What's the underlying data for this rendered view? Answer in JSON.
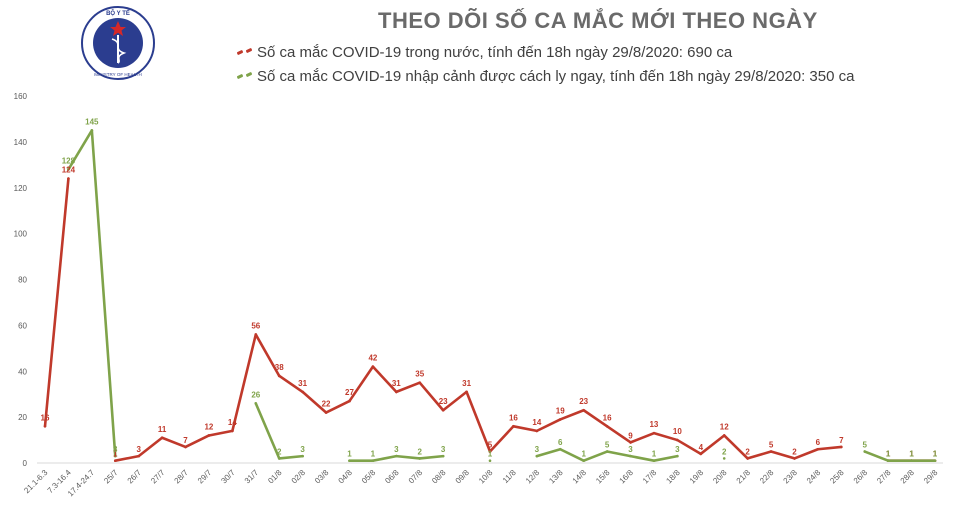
{
  "chart_data": {
    "type": "line",
    "title": "THEO DÕI SỐ CA MẮC MỚI THEO NGÀY",
    "ylim": [
      0,
      160
    ],
    "yticks": [
      0,
      20,
      40,
      60,
      80,
      100,
      120,
      140,
      160
    ],
    "grid": false,
    "legend_position": "top",
    "categories": [
      "21.1-6.3",
      "7.3-16.4",
      "17.4-24.7",
      "25/7",
      "26/7",
      "27/7",
      "28/7",
      "29/7",
      "30/7",
      "31/7",
      "01/8",
      "02/8",
      "03/8",
      "04/8",
      "05/8",
      "06/8",
      "07/8",
      "08/8",
      "09/8",
      "10/8",
      "11/8",
      "12/8",
      "13/8",
      "14/8",
      "15/8",
      "16/8",
      "17/8",
      "18/8",
      "19/8",
      "20/8",
      "21/8",
      "22/8",
      "23/8",
      "24/8",
      "25/8",
      "26/8",
      "27/8",
      "28/8",
      "29/8"
    ],
    "series": [
      {
        "name": "Số ca mắc COVID-19 trong nước, tính đến 18h ngày 29/8/2020: 690 ca",
        "color": "#c0392b",
        "values": [
          16,
          124,
          null,
          1,
          3,
          11,
          7,
          12,
          14,
          56,
          38,
          31,
          22,
          27,
          42,
          31,
          35,
          23,
          31,
          5,
          16,
          14,
          19,
          23,
          16,
          9,
          13,
          10,
          4,
          12,
          2,
          5,
          2,
          6,
          7,
          null,
          1,
          1,
          1
        ]
      },
      {
        "name": "Số ca mắc COVID-19 nhập cảnh được cách ly ngay, tính đến 18h ngày 29/8/2020: 350 ca",
        "color": "#7fa34a",
        "values": [
          null,
          128,
          145,
          3,
          null,
          null,
          null,
          null,
          null,
          26,
          2,
          3,
          null,
          1,
          1,
          3,
          2,
          3,
          null,
          1,
          null,
          3,
          6,
          1,
          5,
          3,
          1,
          3,
          null,
          2,
          null,
          null,
          null,
          null,
          null,
          5,
          1,
          1,
          1
        ]
      }
    ]
  },
  "logo": {
    "top_text": "BỘ Y TẾ",
    "bottom_text": "MINISTRY OF HEALTH"
  }
}
